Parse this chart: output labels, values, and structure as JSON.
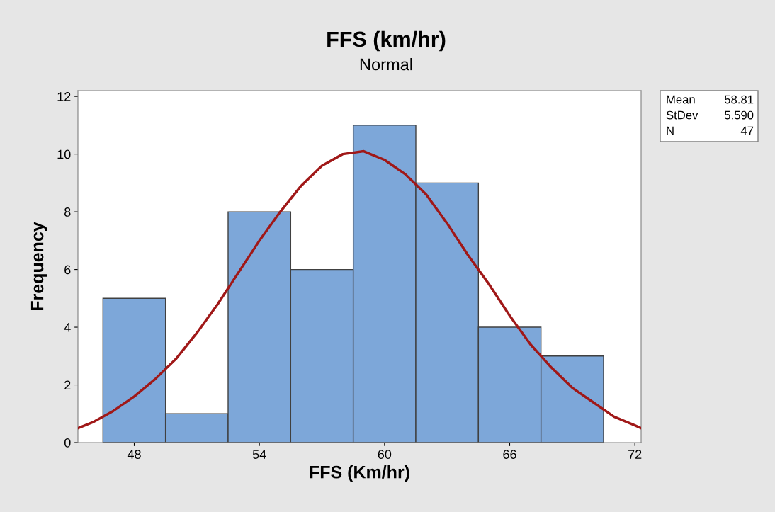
{
  "chart_data": {
    "type": "histogram",
    "title": "FFS (km/hr)",
    "subtitle": "Normal",
    "xlabel": "FFS (Km/hr)",
    "ylabel": "Frequency",
    "series": [
      {
        "bins": [
          46.5,
          49.5,
          52.5,
          55.5,
          58.5,
          61.5,
          64.5,
          67.5,
          70.5
        ],
        "values": [
          5,
          1,
          8,
          6,
          11,
          9,
          4,
          3
        ],
        "color": "#7da7d9"
      },
      {
        "type": "line",
        "color": "#a01818",
        "x": [
          45.3,
          46,
          47,
          48,
          49,
          50,
          51,
          52,
          53,
          54,
          55,
          56,
          57,
          58,
          59,
          60,
          61,
          62,
          63,
          64,
          65,
          66,
          67,
          68,
          69,
          70,
          71,
          72,
          72.3
        ],
        "values": [
          0.5,
          0.7,
          1.1,
          1.6,
          2.2,
          2.9,
          3.8,
          4.8,
          5.9,
          7.0,
          8.0,
          8.9,
          9.6,
          10.0,
          10.1,
          9.8,
          9.3,
          8.6,
          7.6,
          6.5,
          5.5,
          4.4,
          3.4,
          2.6,
          1.9,
          1.4,
          0.9,
          0.6,
          0.5
        ]
      }
    ],
    "xlim": [
      45.3,
      72.3
    ],
    "xticks": [
      48,
      54,
      60,
      66,
      72
    ],
    "ylim": [
      0,
      12.2
    ],
    "yticks": [
      0,
      2,
      4,
      6,
      8,
      10,
      12
    ],
    "grid": false,
    "legend": false,
    "annotations": [
      "Mean 58.81",
      "StDev 5.590",
      "N 47"
    ]
  }
}
